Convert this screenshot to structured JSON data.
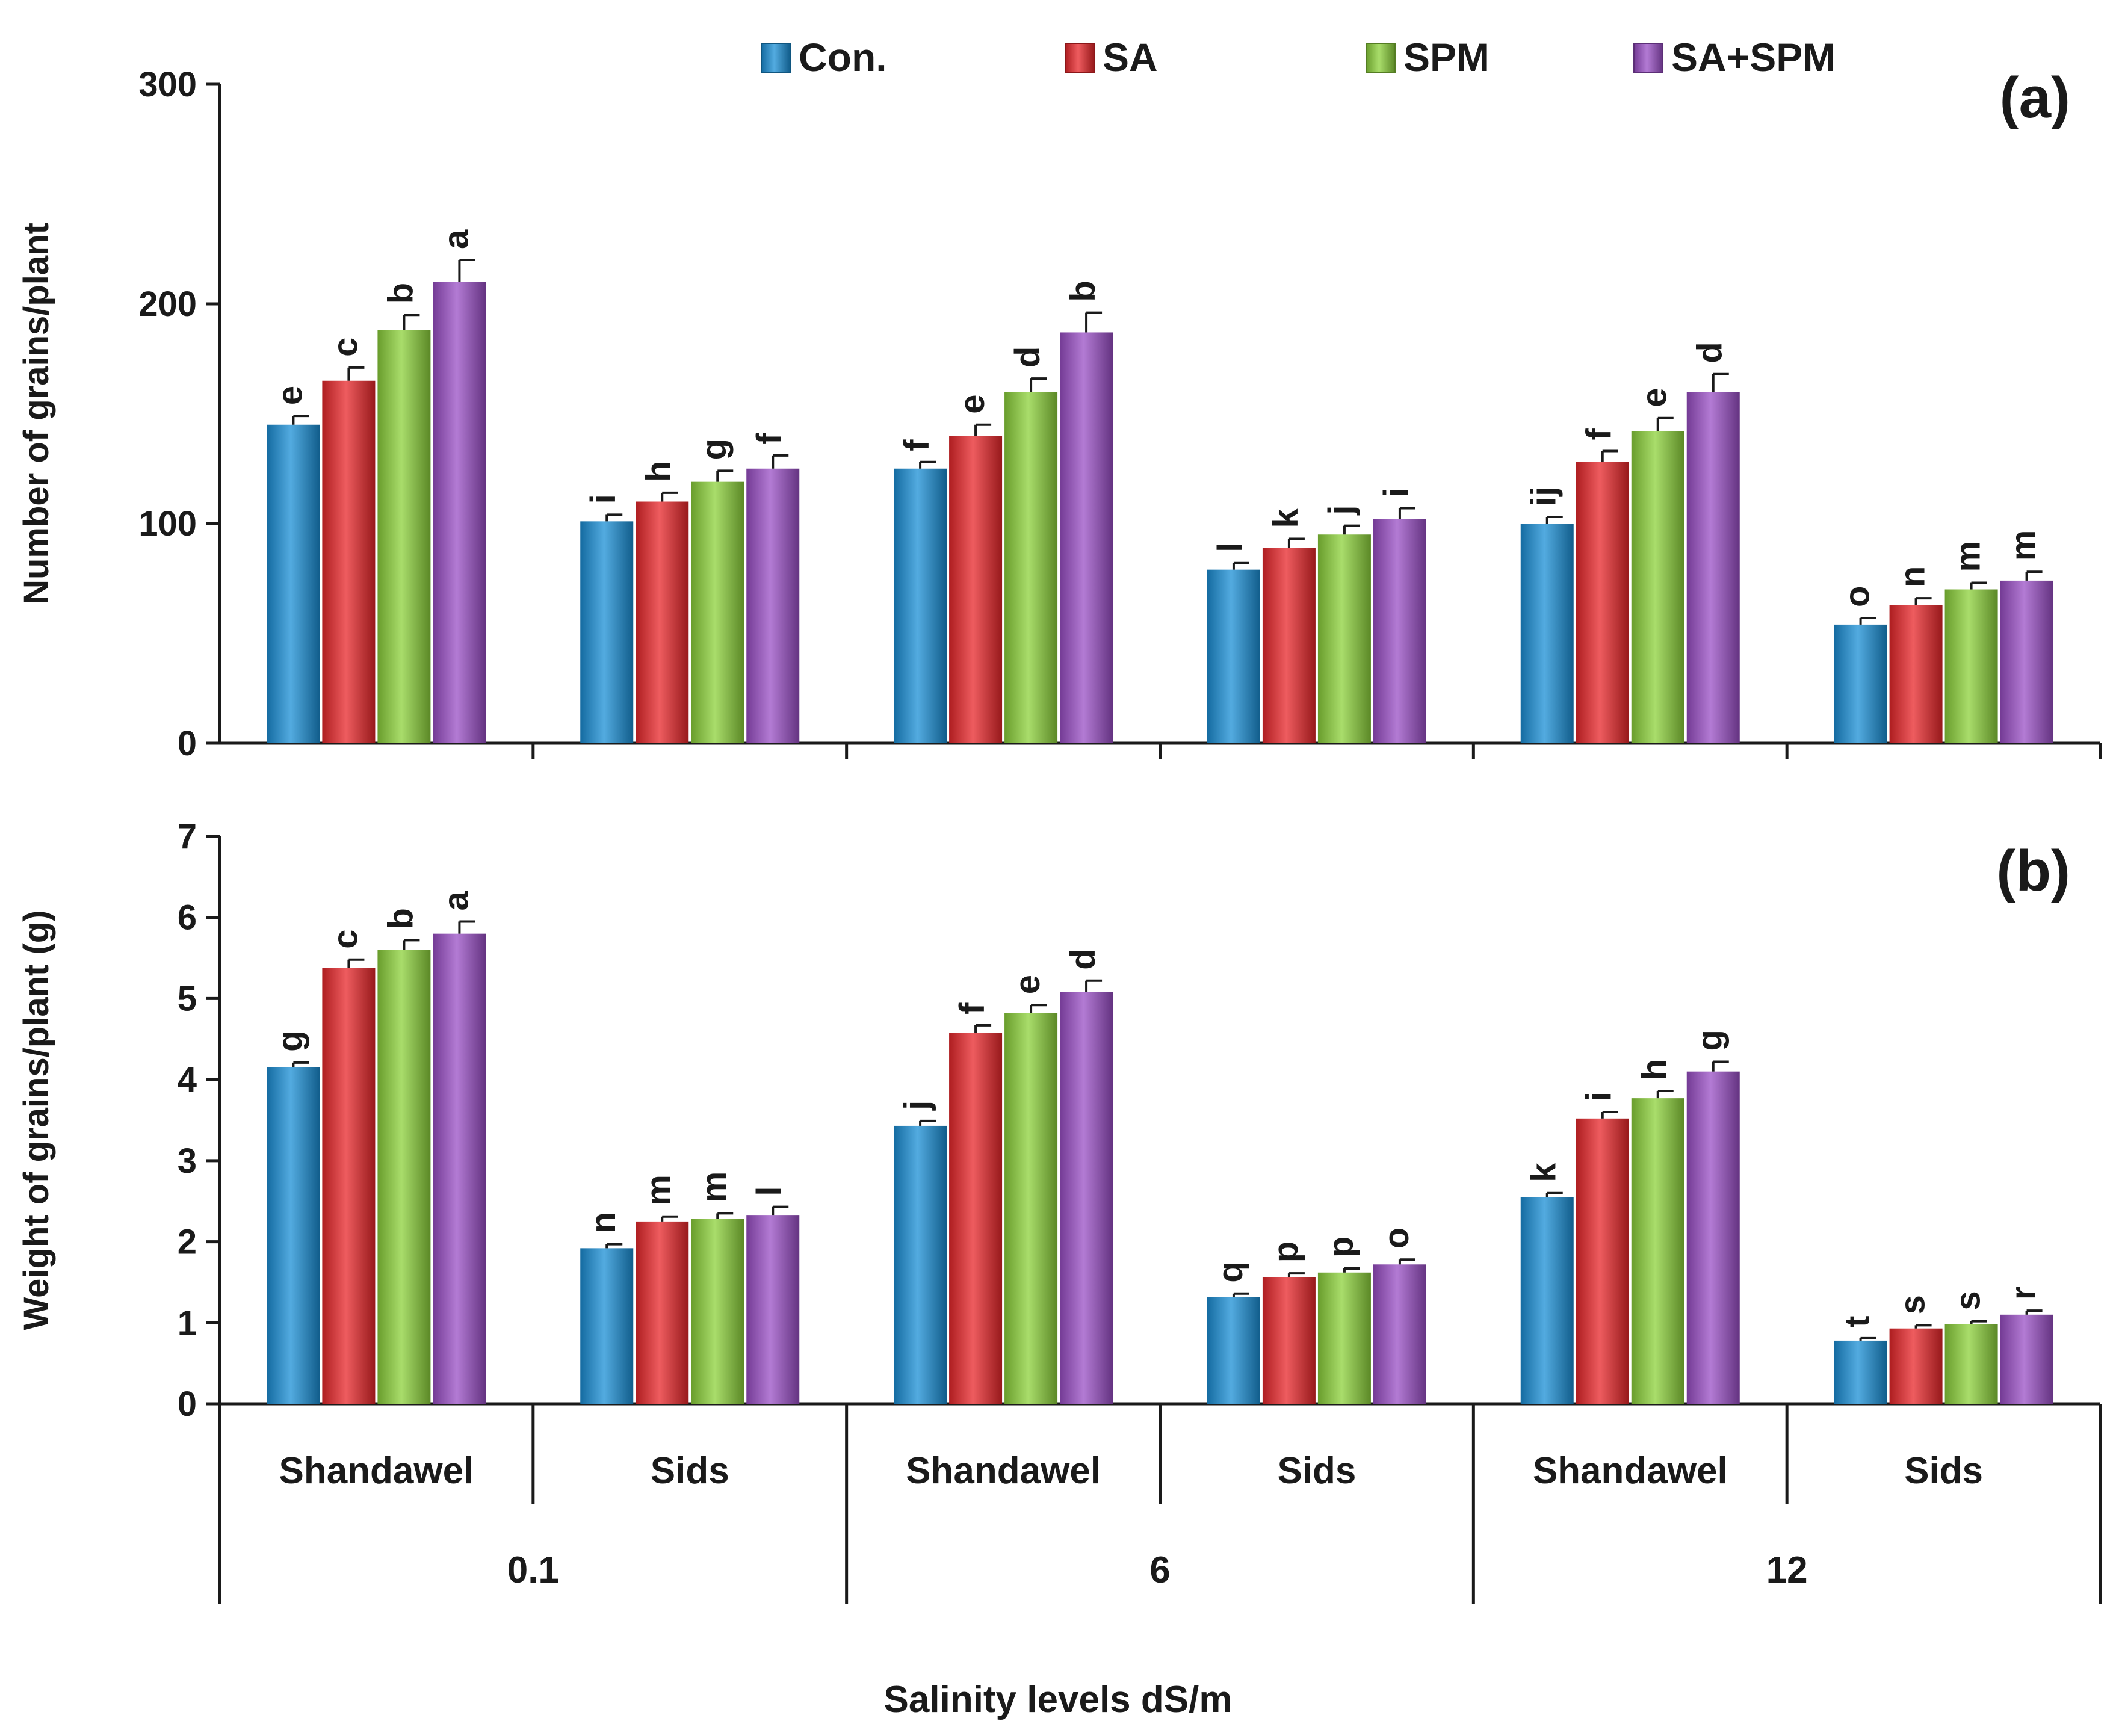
{
  "chart_data": {
    "type": "bar",
    "legend": {
      "placement": "top",
      "entries": [
        {
          "name": "Con.",
          "color": "#1a8fd6"
        },
        {
          "name": "SA",
          "color": "#e8262a"
        },
        {
          "name": "SPM",
          "color": "#8cd13a"
        },
        {
          "name": "SA+SPM",
          "color": "#9a4fc6"
        }
      ]
    },
    "categories": [
      "Shandawel",
      "Sids",
      "Shandawel",
      "Sids",
      "Shandawel",
      "Sids"
    ],
    "groups": [
      {
        "label": "0.1",
        "span": [
          0,
          1
        ]
      },
      {
        "label": "6",
        "span": [
          2,
          3
        ]
      },
      {
        "label": "12",
        "span": [
          4,
          5
        ]
      }
    ],
    "xlabel": "Salinity levels dS/m",
    "panels": [
      {
        "panel_label": "(a)",
        "ylabel": "Number of grains/plant",
        "ylim": [
          0,
          300
        ],
        "yticks": [
          0,
          100,
          200,
          300
        ],
        "series": [
          {
            "name": "Con.",
            "values": [
              145,
              101,
              125,
              79,
              100,
              54
            ],
            "errors": [
              4,
              3,
              3,
              3,
              3,
              3
            ],
            "letters": [
              "e",
              "i",
              "f",
              "l",
              "ij",
              "o"
            ]
          },
          {
            "name": "SA",
            "values": [
              165,
              110,
              140,
              89,
              128,
              63
            ],
            "errors": [
              6,
              4,
              5,
              4,
              5,
              3
            ],
            "letters": [
              "c",
              "h",
              "e",
              "k",
              "f",
              "n"
            ]
          },
          {
            "name": "SPM",
            "values": [
              188,
              119,
              160,
              95,
              142,
              70
            ],
            "errors": [
              7,
              5,
              6,
              4,
              6,
              3
            ],
            "letters": [
              "b",
              "g",
              "d",
              "j",
              "e",
              "m"
            ]
          },
          {
            "name": "SA+SPM",
            "values": [
              210,
              125,
              187,
              102,
              160,
              74
            ],
            "errors": [
              10,
              6,
              9,
              5,
              8,
              4
            ],
            "letters": [
              "a",
              "f",
              "b",
              "i",
              "d",
              "m"
            ]
          }
        ]
      },
      {
        "panel_label": "(b)",
        "ylabel": "Weight of grains/plant (g)",
        "ylim": [
          0,
          7
        ],
        "yticks": [
          0,
          1,
          2,
          3,
          4,
          5,
          6,
          7
        ],
        "series": [
          {
            "name": "Con.",
            "values": [
              4.15,
              1.92,
              3.43,
              1.32,
              2.55,
              0.78
            ],
            "errors": [
              0.06,
              0.05,
              0.06,
              0.04,
              0.05,
              0.03
            ],
            "letters": [
              "g",
              "n",
              "j",
              "q",
              "k",
              "t"
            ]
          },
          {
            "name": "SA",
            "values": [
              5.38,
              2.25,
              4.58,
              1.56,
              3.52,
              0.93
            ],
            "errors": [
              0.1,
              0.06,
              0.09,
              0.05,
              0.08,
              0.04
            ],
            "letters": [
              "c",
              "m",
              "f",
              "p",
              "i",
              "s"
            ]
          },
          {
            "name": "SPM",
            "values": [
              5.6,
              2.28,
              4.82,
              1.62,
              3.77,
              0.98
            ],
            "errors": [
              0.12,
              0.07,
              0.1,
              0.05,
              0.09,
              0.04
            ],
            "letters": [
              "b",
              "m",
              "e",
              "p",
              "h",
              "s"
            ]
          },
          {
            "name": "SA+SPM",
            "values": [
              5.8,
              2.33,
              5.08,
              1.72,
              4.1,
              1.1
            ],
            "errors": [
              0.15,
              0.1,
              0.14,
              0.06,
              0.12,
              0.05
            ],
            "letters": [
              "a",
              "l",
              "d",
              "o",
              "g",
              "r"
            ]
          }
        ]
      }
    ]
  }
}
